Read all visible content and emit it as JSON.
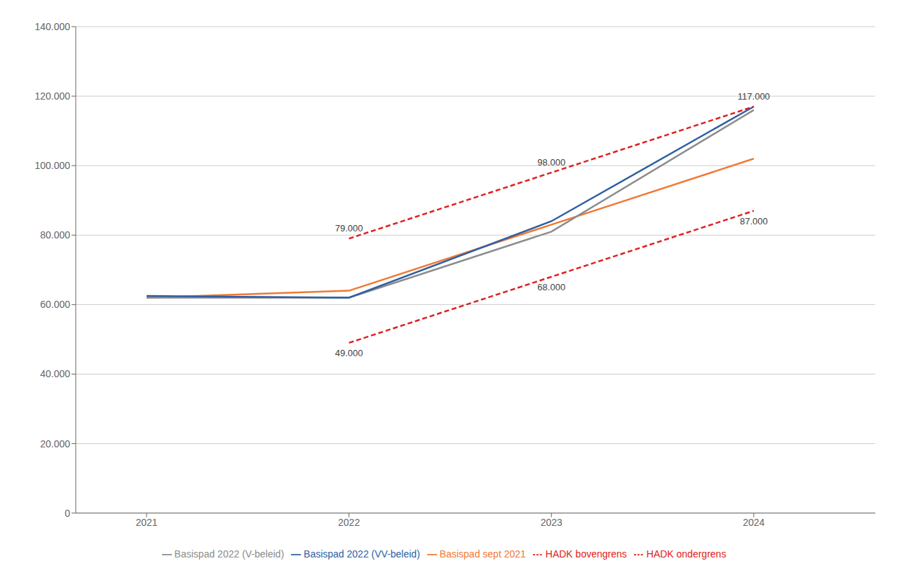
{
  "chart_data": {
    "type": "line",
    "x": [
      2021,
      2022,
      2023,
      2024
    ],
    "series": [
      {
        "name": "Basispad sept 2021",
        "color": "#f07832",
        "line_style": "solid",
        "values": [
          62000,
          64000,
          83000,
          102000
        ]
      },
      {
        "name": "Basispad 2022 (V-beleid)",
        "color": "#8c8c8c",
        "line_style": "solid",
        "values": [
          62000,
          62000,
          81000,
          116000
        ]
      },
      {
        "name": "Basispad 2022 (VV-beleid)",
        "color": "#2e5fa3",
        "line_style": "solid",
        "values": [
          62500,
          62000,
          84000,
          117000
        ]
      },
      {
        "name": "HADK bovengrens",
        "color": "#e02020",
        "line_style": "dashed",
        "values": [
          null,
          79000,
          98000,
          117000
        ]
      },
      {
        "name": "HADK ondergrens",
        "color": "#e02020",
        "line_style": "dashed",
        "values": [
          null,
          49000,
          68000,
          87000
        ]
      }
    ],
    "xlim": [
      2020.65,
      2024.6
    ],
    "xticks": [
      2021,
      2022,
      2023,
      2024
    ],
    "ylim": [
      0,
      140000
    ],
    "yticks": [
      0,
      {
        "value": 20000,
        "label": "20.000"
      },
      {
        "value": 40000,
        "label": "40.000"
      },
      {
        "value": 60000,
        "label": "60.000"
      },
      {
        "value": 80000,
        "label": "80.000"
      },
      {
        "value": 100000,
        "label": "100.000"
      },
      {
        "value": 120000,
        "label": "120.000"
      },
      {
        "value": 140000,
        "label": "140.000"
      }
    ],
    "grid": true,
    "legend": "bottom",
    "annotations": [
      {
        "text": "79.000",
        "x": 2022,
        "y": 79000,
        "position": "top"
      },
      {
        "text": "98.000",
        "x": 2023,
        "y": 98000,
        "position": "top"
      },
      {
        "text": "117.000",
        "x": 2024,
        "y": 117000,
        "position": "top"
      },
      {
        "text": "49.000",
        "x": 2022,
        "y": 49000,
        "position": "bottom"
      },
      {
        "text": "68.000",
        "x": 2023,
        "y": 68000,
        "position": "bottom"
      },
      {
        "text": "87.000",
        "x": 2024,
        "y": 87000,
        "position": "bottom"
      }
    ]
  }
}
